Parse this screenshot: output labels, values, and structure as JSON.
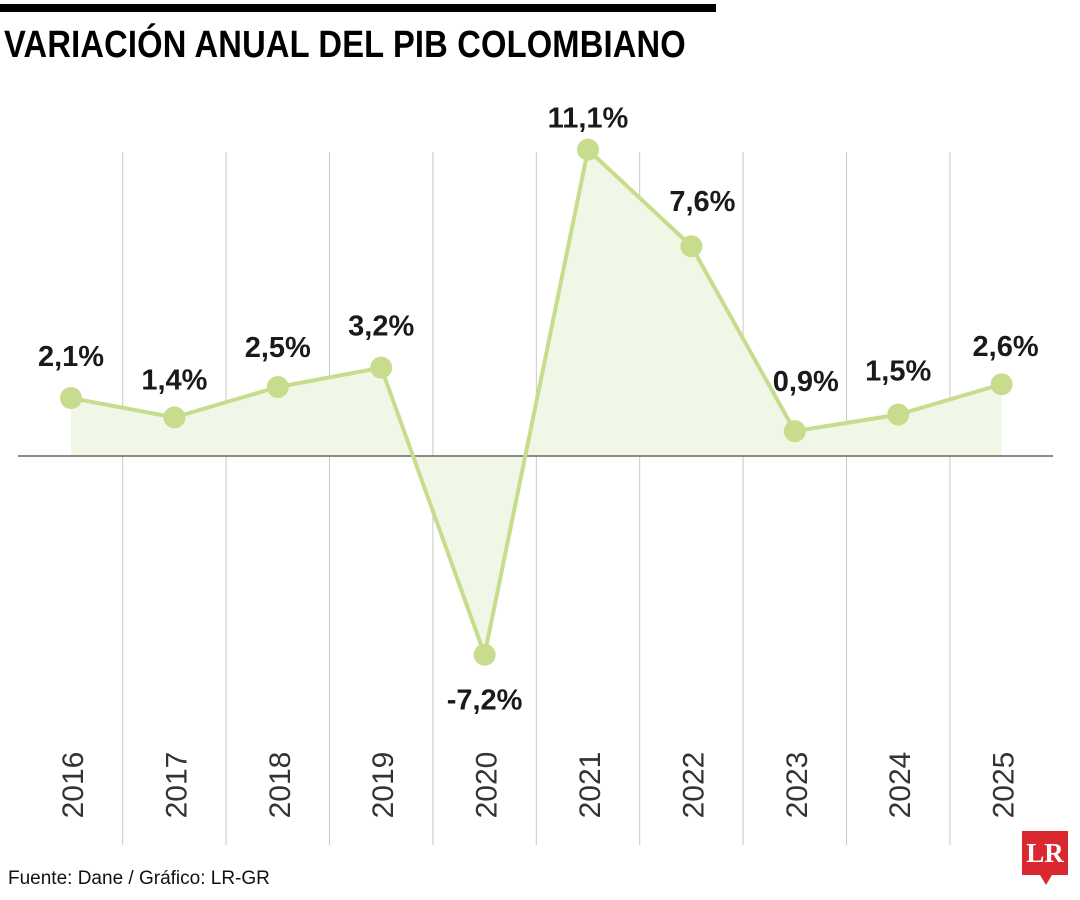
{
  "title": "VARIACIÓN ANUAL DEL PIB COLOMBIANO",
  "footer": "Fuente: Dane / Gráfico: LR-GR",
  "logo_text": "LR",
  "colors": {
    "line": "#c8dc8e",
    "marker": "#c8dc8e",
    "area": "#f1f7e6",
    "grid": "#c8c8c8",
    "baseline": "#666666",
    "logo": "#d9282f"
  },
  "chart_data": {
    "type": "line",
    "title": "VARIACIÓN ANUAL DEL PIB COLOMBIANO",
    "xlabel": "",
    "ylabel": "",
    "categories": [
      "2016",
      "2017",
      "2018",
      "2019",
      "2020",
      "2021",
      "2022",
      "2023",
      "2024",
      "2025"
    ],
    "series": [
      {
        "values": [
          2.1,
          1.4,
          2.5,
          3.2,
          -7.2,
          11.1,
          7.6,
          0.9,
          1.5,
          2.6
        ],
        "labels": [
          "2,1%",
          "1,4%",
          "2,5%",
          "3,2%",
          "-7,2%",
          "11,1%",
          "7,6%",
          "0,9%",
          "1,5%",
          "2,6%"
        ]
      }
    ],
    "ylim": [
      -10.5,
      11.1
    ],
    "grid": "vertical",
    "legend": "none",
    "area_fill": true
  }
}
